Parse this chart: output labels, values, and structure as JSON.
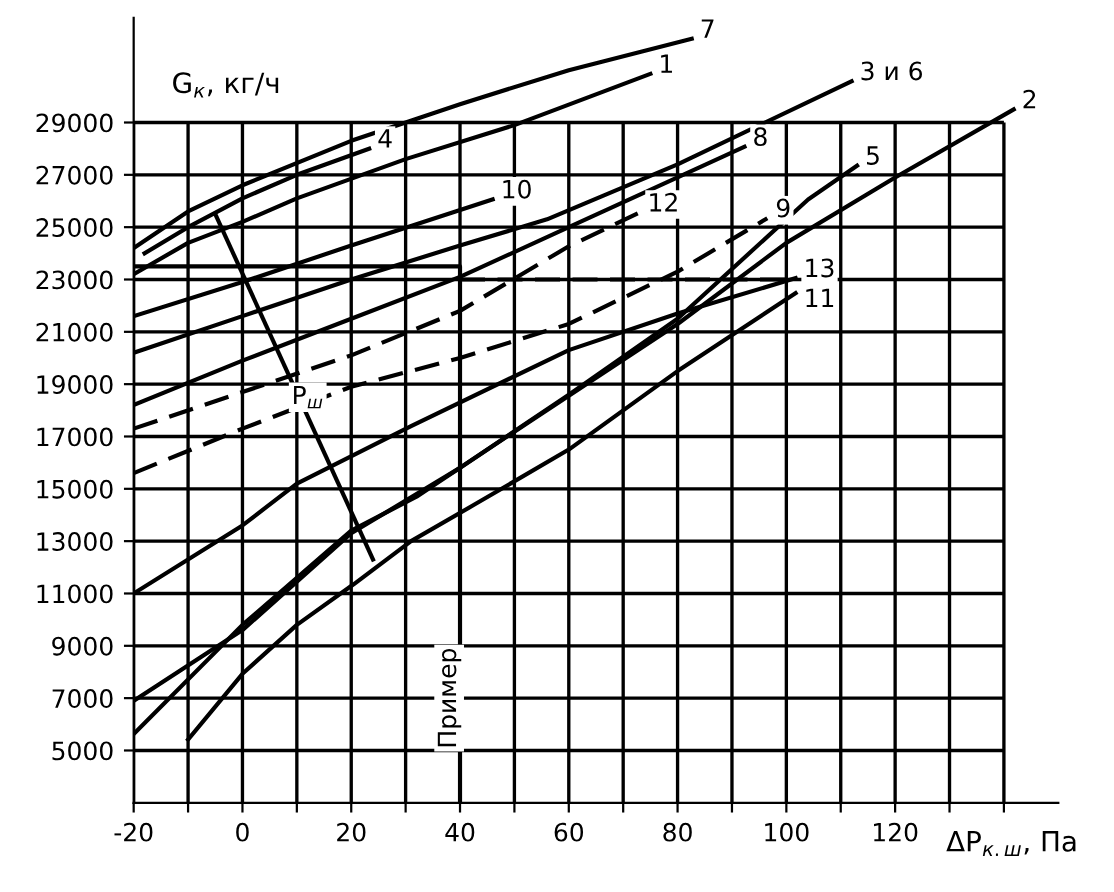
{
  "chart_data": {
    "type": "line",
    "xlabel": "ΔP$_{к.ш}$, Па",
    "ylabel": "G$_{к}$, кг/ч",
    "xlim": [
      -20,
      150
    ],
    "ylim": [
      3000,
      33000
    ],
    "xticks": [
      -20,
      {
        "value": -10,
        "label": null
      },
      0,
      {
        "value": 10,
        "label": null
      },
      20,
      {
        "value": 30,
        "label": null
      },
      40,
      {
        "value": 50,
        "label": null
      },
      60,
      {
        "value": 70,
        "label": null
      },
      80,
      {
        "value": 90,
        "label": null
      },
      100,
      {
        "value": 110,
        "label": null
      },
      120,
      {
        "value": 130,
        "label": null
      },
      {
        "value": 140,
        "label": null
      }
    ],
    "yticks": [
      5000,
      7000,
      9000,
      11000,
      13000,
      15000,
      17000,
      19000,
      21000,
      23000,
      25000,
      27000,
      29000
    ],
    "grid": true,
    "legend": false,
    "marker": "none",
    "annotations": [
      {
        "text": "Пример",
        "x": 38,
        "y": 7000
      },
      {
        "text": "P$_{ш}$",
        "x": 12,
        "y": 18500
      }
    ],
    "series": [
      {
        "name": "7",
        "color": "#000000",
        "x": [
          -20,
          -10,
          0,
          20,
          40,
          60,
          82.6
        ],
        "values": [
          24200,
          25600,
          26600,
          28300,
          29700,
          31000,
          32200
        ]
      },
      {
        "name": "4",
        "color": "#000000",
        "x": [
          -18,
          -10,
          0,
          10,
          23.3
        ],
        "values": [
          24000,
          25000,
          26100,
          27000,
          28000
        ]
      },
      {
        "name": "1",
        "color": "#000000",
        "x": [
          -20,
          -10,
          0,
          10,
          30,
          50,
          75
        ],
        "values": [
          23200,
          24400,
          25200,
          26100,
          27600,
          28900,
          30860
        ]
      },
      {
        "name": "10",
        "color": "#000000",
        "x": [
          -20,
          0,
          20,
          46
        ],
        "values": [
          21600,
          22900,
          24300,
          26060
        ]
      },
      {
        "name": "3 и 6",
        "color": "#000000",
        "x": [
          -20,
          0,
          20,
          40,
          56,
          80,
          112
        ],
        "values": [
          20200,
          21600,
          23000,
          24300,
          25300,
          27400,
          30580
        ]
      },
      {
        "name": "8",
        "color": "#000000",
        "x": [
          -20,
          0,
          20,
          40,
          60,
          80,
          92.3
        ],
        "values": [
          18200,
          19900,
          21500,
          23100,
          25000,
          26900,
          28070
        ]
      },
      {
        "name": "12",
        "color": "#000000",
        "line_style": "dashed",
        "x": [
          -20,
          0,
          20,
          40,
          60,
          73
        ],
        "values": [
          17300,
          18700,
          20100,
          21800,
          24270,
          25560
        ]
      },
      {
        "name": "9",
        "color": "#000000",
        "line_style": "dashed",
        "x": [
          -20,
          0,
          20,
          40,
          60,
          80,
          96.5
        ],
        "values": [
          15600,
          17300,
          18900,
          20000,
          21300,
          23300,
          25340
        ]
      },
      {
        "name": "5",
        "color": "#000000",
        "x": [
          -20,
          0,
          20,
          40,
          60,
          80,
          104,
          113
        ],
        "values": [
          6900,
          9600,
          13300,
          15800,
          18600,
          21500,
          26060,
          27350
        ]
      },
      {
        "name": "2",
        "color": "#000000",
        "x": [
          -20,
          0,
          20,
          32,
          52,
          80,
          100,
          120,
          141.8
        ],
        "values": [
          5630,
          9800,
          13400,
          14700,
          17460,
          21300,
          24400,
          26900,
          29500
        ]
      },
      {
        "name": "13",
        "color": "#000000",
        "x": [
          -20,
          0,
          10,
          31,
          60,
          80,
          101.7
        ],
        "values": [
          11000,
          13600,
          15200,
          17400,
          20300,
          21700,
          23050
        ]
      },
      {
        "name": "11",
        "color": "#000000",
        "x": [
          -10,
          0,
          10,
          20.5,
          31,
          42.5,
          60,
          80,
          101.7
        ],
        "values": [
          5420,
          7930,
          9800,
          11360,
          13000,
          14380,
          16500,
          19500,
          22480
        ]
      },
      {
        "color": "#000000",
        "x": [
          40,
          40,
          -20
        ],
        "values": [
          3000,
          23500,
          23500
        ]
      },
      {
        "color": "#000000",
        "x": [
          -5,
          24
        ],
        "values": [
          25500,
          12300
        ]
      },
      {
        "color": "#000000",
        "line_style": "dashed",
        "x": [
          40,
          100
        ],
        "values": [
          23000,
          23000
        ]
      }
    ]
  }
}
